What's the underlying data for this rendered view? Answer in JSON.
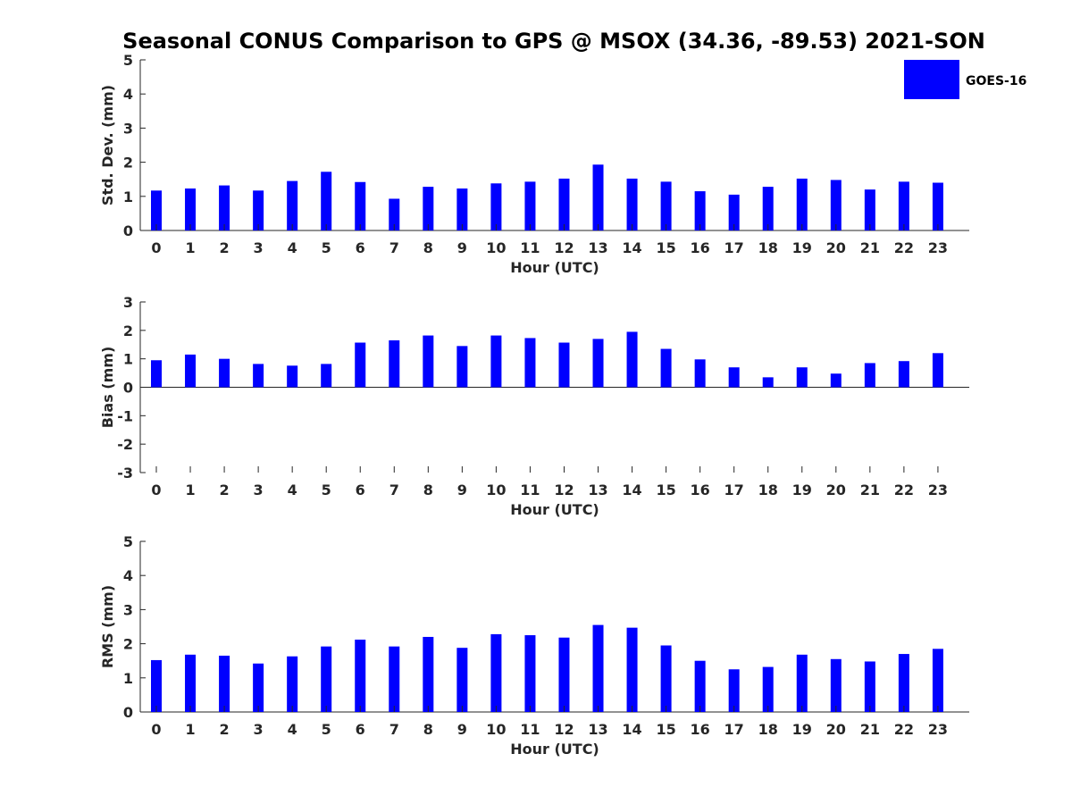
{
  "figure": {
    "title": "Seasonal CONUS Comparison to GPS @ MSOX (34.36, -89.53) 2021-SON",
    "legend": {
      "label": "GOES-16",
      "color": "#0000ff",
      "placement": "top-right"
    }
  },
  "chart_data": [
    {
      "type": "bar",
      "name": "std-dev",
      "series_name": "GOES-16",
      "color": "#0000ff",
      "xlabel": "Hour (UTC)",
      "ylabel": "Std. Dev. (mm)",
      "ylim": [
        0,
        5
      ],
      "yticks": [
        0,
        1,
        2,
        3,
        4,
        5
      ],
      "categories": [
        "0",
        "1",
        "2",
        "3",
        "4",
        "5",
        "6",
        "7",
        "8",
        "9",
        "10",
        "11",
        "12",
        "13",
        "14",
        "15",
        "16",
        "17",
        "18",
        "19",
        "20",
        "21",
        "22",
        "23"
      ],
      "values": [
        1.17,
        1.23,
        1.32,
        1.17,
        1.45,
        1.72,
        1.42,
        0.93,
        1.28,
        1.23,
        1.38,
        1.43,
        1.52,
        1.93,
        1.52,
        1.43,
        1.15,
        1.05,
        1.28,
        1.52,
        1.48,
        1.2,
        1.43,
        1.4
      ]
    },
    {
      "type": "bar",
      "name": "bias",
      "series_name": "GOES-16",
      "color": "#0000ff",
      "xlabel": "Hour (UTC)",
      "ylabel": "Bias (mm)",
      "ylim": [
        -3,
        3
      ],
      "yticks": [
        -3,
        -2,
        -1,
        0,
        1,
        2,
        3
      ],
      "categories": [
        "0",
        "1",
        "2",
        "3",
        "4",
        "5",
        "6",
        "7",
        "8",
        "9",
        "10",
        "11",
        "12",
        "13",
        "14",
        "15",
        "16",
        "17",
        "18",
        "19",
        "20",
        "21",
        "22",
        "23"
      ],
      "values": [
        0.95,
        1.15,
        1.0,
        0.82,
        0.76,
        0.82,
        1.57,
        1.65,
        1.82,
        1.45,
        1.82,
        1.73,
        1.57,
        1.7,
        1.95,
        1.35,
        0.98,
        0.7,
        0.35,
        0.7,
        0.48,
        0.85,
        0.92,
        1.2
      ]
    },
    {
      "type": "bar",
      "name": "rms",
      "series_name": "GOES-16",
      "color": "#0000ff",
      "xlabel": "Hour (UTC)",
      "ylabel": "RMS (mm)",
      "ylim": [
        0,
        5
      ],
      "yticks": [
        0,
        1,
        2,
        3,
        4,
        5
      ],
      "categories": [
        "0",
        "1",
        "2",
        "3",
        "4",
        "5",
        "6",
        "7",
        "8",
        "9",
        "10",
        "11",
        "12",
        "13",
        "14",
        "15",
        "16",
        "17",
        "18",
        "19",
        "20",
        "21",
        "22",
        "23"
      ],
      "values": [
        1.52,
        1.68,
        1.65,
        1.42,
        1.63,
        1.92,
        2.12,
        1.92,
        2.2,
        1.88,
        2.28,
        2.25,
        2.18,
        2.55,
        2.47,
        1.95,
        1.5,
        1.25,
        1.32,
        1.68,
        1.55,
        1.48,
        1.7,
        1.85
      ]
    }
  ]
}
